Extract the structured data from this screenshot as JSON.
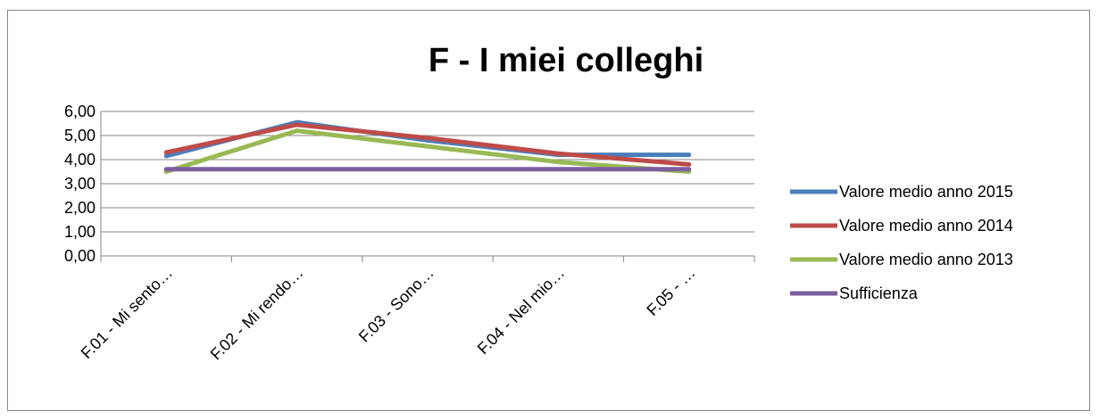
{
  "chart_data": {
    "type": "line",
    "title": "F - I miei colleghi",
    "xlabel": "",
    "ylabel": "",
    "categories": [
      "F.01 - Mi sento…",
      "F.02 - Mi rendo…",
      "F.03 - Sono…",
      "F.04 - Nel mio…",
      "F.05 - …"
    ],
    "ylim": [
      0,
      6
    ],
    "yticks": [
      "0,00",
      "1,00",
      "2,00",
      "3,00",
      "4,00",
      "5,00",
      "6,00"
    ],
    "grid": true,
    "legend_position": "right",
    "series": [
      {
        "name": "Valore medio anno 2015",
        "color": "#4a7ebb",
        "values": [
          4.15,
          5.55,
          4.8,
          4.2,
          4.2
        ]
      },
      {
        "name": "Valore medio anno 2014",
        "color": "#be4b48",
        "values": [
          4.3,
          5.45,
          4.9,
          4.25,
          3.8
        ]
      },
      {
        "name": "Valore medio anno 2013",
        "color": "#98b954",
        "values": [
          3.5,
          5.2,
          4.55,
          3.9,
          3.5
        ]
      },
      {
        "name": "Sufficienza",
        "color": "#7d5fa0",
        "values": [
          3.6,
          3.6,
          3.6,
          3.6,
          3.6
        ]
      }
    ]
  }
}
